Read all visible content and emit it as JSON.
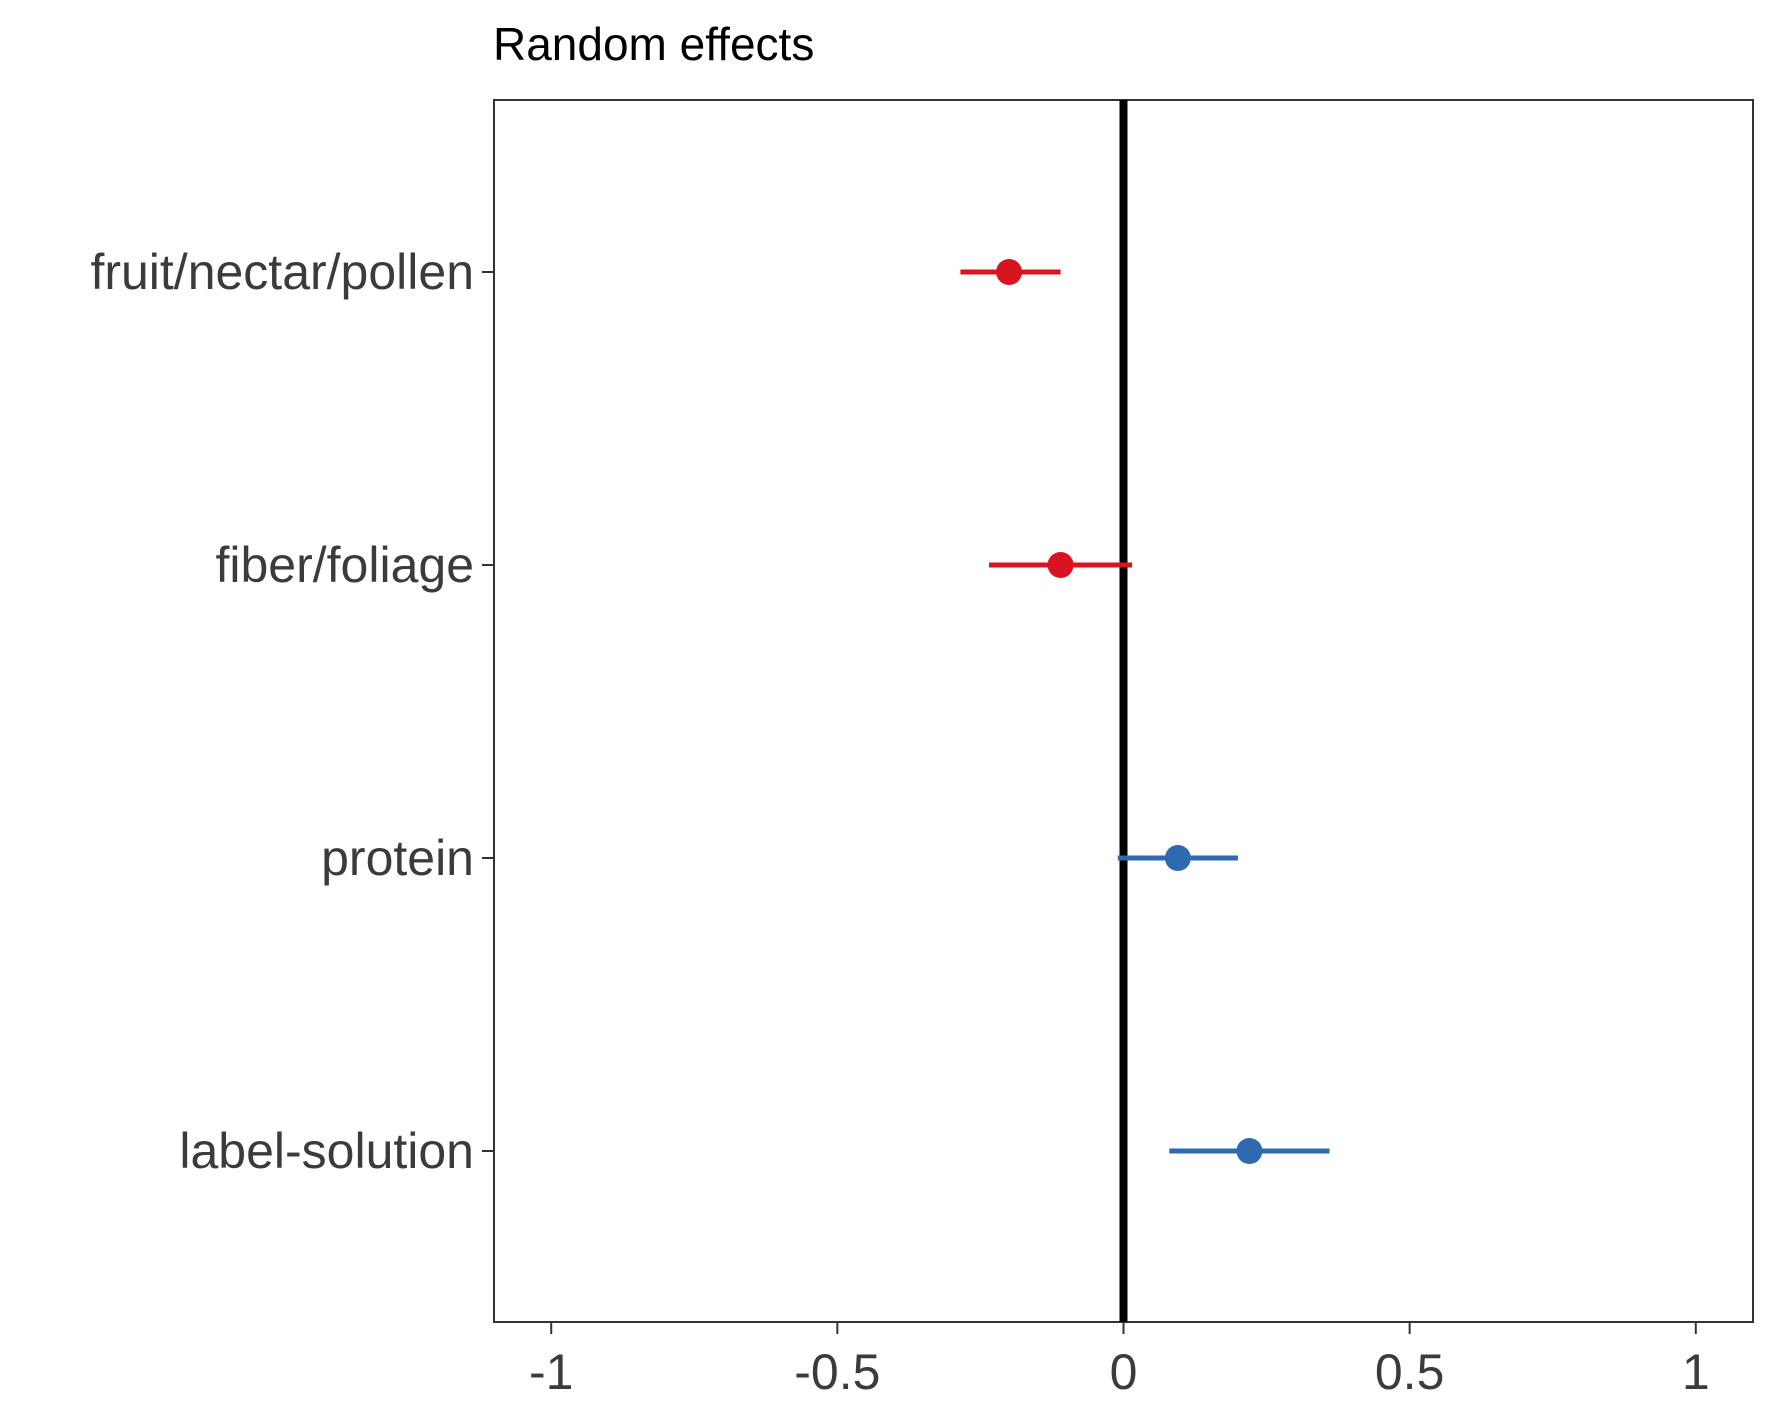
{
  "chart_data": {
    "type": "scatter",
    "title": "Random effects",
    "xlabel": "",
    "ylabel": "",
    "xlim": [
      -1.1,
      1.1
    ],
    "xticks": [
      -1,
      -0.5,
      0,
      0.5,
      1
    ],
    "xtick_labels": [
      "-1",
      "-0.5",
      "0",
      "0.5",
      "1"
    ],
    "reference_line_x": 0,
    "grid": false,
    "categories": [
      "fruit/nectar/pollen",
      "fiber/foliage",
      "protein",
      "label-solution"
    ],
    "points": [
      {
        "label": "fruit/nectar/pollen",
        "estimate": -0.2,
        "lower": -0.285,
        "upper": -0.11,
        "color": "#d7141f"
      },
      {
        "label": "fiber/foliage",
        "estimate": -0.11,
        "lower": -0.235,
        "upper": 0.015,
        "color": "#d7141f"
      },
      {
        "label": "protein",
        "estimate": 0.095,
        "lower": -0.01,
        "upper": 0.2,
        "color": "#2f6ab0"
      },
      {
        "label": "label-solution",
        "estimate": 0.22,
        "lower": 0.08,
        "upper": 0.36,
        "color": "#2f6ab0"
      }
    ]
  }
}
